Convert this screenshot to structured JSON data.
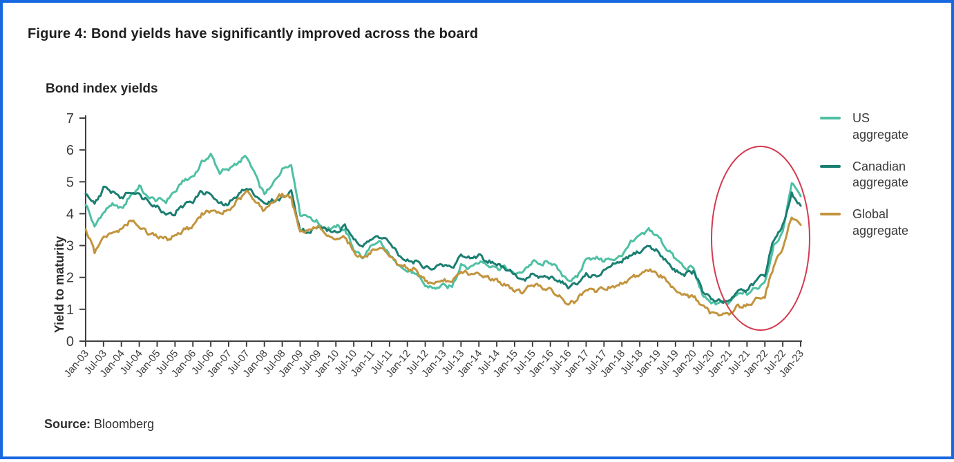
{
  "figure": {
    "title": "Figure 4: Bond yields have significantly improved across the board",
    "source_label": "Source:",
    "source_value": "Bloomberg"
  },
  "colors": {
    "frame_border": "#1767e0",
    "axis": "#3f3f3f",
    "tick_text": "#3d3d3d",
    "annotation_red": "#d23a50",
    "us_aggregate": "#4ec0a3",
    "canadian_aggregate": "#1a7e71",
    "global_aggregate": "#c2943d"
  },
  "chart_data": {
    "type": "line",
    "title": "Bond index yields",
    "xlabel": "",
    "ylabel": "Yield to maturity",
    "ylim": [
      0,
      7
    ],
    "y_ticks": [
      0,
      1,
      2,
      3,
      4,
      5,
      6,
      7
    ],
    "grid": false,
    "legend_position": "right",
    "x_range": "Jan-03 to Jan-23, sampled quarterly",
    "x_tick_labels": [
      "Jan-03",
      "Jul-03",
      "Jan-04",
      "Jul-04",
      "Jan-05",
      "Jul-05",
      "Jan-06",
      "Jul-06",
      "Jan-07",
      "Jul-07",
      "Jan-08",
      "Jul-08",
      "Jan-09",
      "Jul-09",
      "Jan-10",
      "Jul-10",
      "Jan-11",
      "Jul-11",
      "Jan-12",
      "Jul-12",
      "Jan-13",
      "Jul-13",
      "Jan-14",
      "Jul-14",
      "Jan-15",
      "Jul-15",
      "Jan-16",
      "Jul-16",
      "Jan-17",
      "Jul-17",
      "Jan-18",
      "Jul-18",
      "Jan-19",
      "Jul-19",
      "Jan-20",
      "Jul-20",
      "Jan-21",
      "Jul-21",
      "Jan-22",
      "Jul-22",
      "Jan-23"
    ],
    "series": [
      {
        "name": "US aggregate",
        "color": "#4ec0a3",
        "values": [
          4.3,
          3.6,
          4.05,
          4.3,
          4.15,
          4.55,
          4.85,
          4.5,
          4.45,
          4.4,
          4.7,
          5.05,
          5.15,
          5.6,
          5.85,
          5.3,
          5.4,
          5.6,
          5.8,
          5.2,
          4.6,
          4.95,
          5.4,
          5.55,
          4.0,
          3.9,
          3.7,
          3.5,
          3.6,
          3.5,
          2.9,
          2.6,
          3.0,
          3.1,
          2.7,
          2.4,
          2.2,
          2.1,
          1.75,
          1.65,
          1.75,
          1.7,
          2.4,
          2.3,
          2.5,
          2.4,
          2.3,
          2.3,
          2.1,
          2.2,
          2.5,
          2.4,
          2.5,
          2.2,
          1.9,
          2.0,
          2.6,
          2.6,
          2.55,
          2.55,
          2.7,
          3.1,
          3.3,
          3.5,
          3.3,
          2.9,
          2.6,
          2.3,
          2.3,
          1.45,
          1.2,
          1.2,
          1.2,
          1.5,
          1.5,
          1.65,
          1.85,
          3.0,
          3.4,
          5.0,
          4.55
        ]
      },
      {
        "name": "Canadian aggregate",
        "color": "#1a7e71",
        "values": [
          4.6,
          4.3,
          4.8,
          4.7,
          4.5,
          4.7,
          4.6,
          4.4,
          4.2,
          4.0,
          4.0,
          4.3,
          4.4,
          4.7,
          4.6,
          4.3,
          4.3,
          4.6,
          4.8,
          4.6,
          4.3,
          4.4,
          4.5,
          4.7,
          3.5,
          3.4,
          3.6,
          3.5,
          3.4,
          3.6,
          3.2,
          3.0,
          3.2,
          3.3,
          3.1,
          2.7,
          2.5,
          2.5,
          2.3,
          2.3,
          2.4,
          2.3,
          2.7,
          2.6,
          2.7,
          2.5,
          2.4,
          2.3,
          2.1,
          1.9,
          2.1,
          2.0,
          2.0,
          1.9,
          1.7,
          1.8,
          2.1,
          2.0,
          2.2,
          2.4,
          2.5,
          2.7,
          2.8,
          3.0,
          2.8,
          2.5,
          2.2,
          2.1,
          2.2,
          1.6,
          1.3,
          1.25,
          1.25,
          1.6,
          1.6,
          1.9,
          2.1,
          3.2,
          3.6,
          4.6,
          4.25
        ]
      },
      {
        "name": "Global aggregate",
        "color": "#c2943d",
        "values": [
          3.5,
          2.8,
          3.3,
          3.4,
          3.5,
          3.8,
          3.6,
          3.4,
          3.3,
          3.2,
          3.3,
          3.5,
          3.6,
          4.0,
          4.1,
          4.0,
          4.1,
          4.4,
          4.7,
          4.4,
          4.1,
          4.4,
          4.6,
          4.5,
          3.4,
          3.5,
          3.6,
          3.3,
          3.2,
          3.3,
          2.8,
          2.6,
          2.8,
          2.9,
          2.7,
          2.4,
          2.3,
          2.2,
          1.9,
          1.8,
          1.9,
          1.85,
          2.2,
          2.1,
          2.1,
          2.0,
          1.9,
          1.75,
          1.6,
          1.55,
          1.8,
          1.7,
          1.6,
          1.4,
          1.15,
          1.3,
          1.6,
          1.6,
          1.65,
          1.7,
          1.8,
          2.0,
          2.1,
          2.25,
          2.1,
          1.9,
          1.6,
          1.45,
          1.4,
          1.1,
          0.9,
          0.85,
          0.85,
          1.1,
          1.1,
          1.3,
          1.4,
          2.4,
          2.9,
          3.9,
          3.65
        ]
      }
    ],
    "annotation": {
      "type": "ellipse",
      "color": "#d23a50",
      "note": "red ellipse highlighting the 2021-2023 surge in yields"
    }
  }
}
